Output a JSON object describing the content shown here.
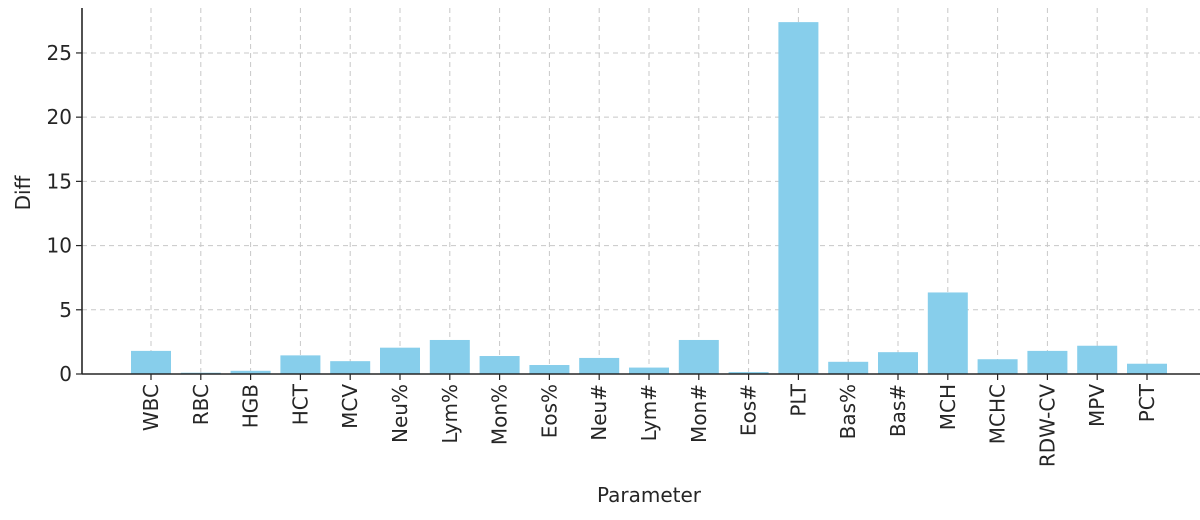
{
  "chart_data": {
    "type": "bar",
    "xlabel": "Parameter",
    "ylabel": "Diff",
    "categories": [
      "WBC",
      "RBC",
      "HGB",
      "HCT",
      "MCV",
      "Neu%",
      "Lym%",
      "Mon%",
      "Eos%",
      "Neu#",
      "Lym#",
      "Mon#",
      "Eos#",
      "PLT",
      "Bas%",
      "Bas#",
      "MCH",
      "MCHC",
      "RDW-CV",
      "MPV",
      "PCT"
    ],
    "values": [
      1.8,
      0.1,
      0.25,
      1.45,
      1.0,
      2.05,
      2.65,
      1.4,
      0.7,
      1.25,
      0.5,
      2.65,
      0.15,
      27.4,
      0.95,
      1.7,
      6.35,
      1.15,
      1.8,
      2.2,
      0.8
    ],
    "ylim": [
      0,
      28.5
    ],
    "yticks": [
      0,
      5,
      10,
      15,
      20,
      25
    ],
    "grid": true,
    "colors": {
      "bar": "#87ceeb",
      "axis": "#262626",
      "grid": "#c8c8c8"
    }
  }
}
